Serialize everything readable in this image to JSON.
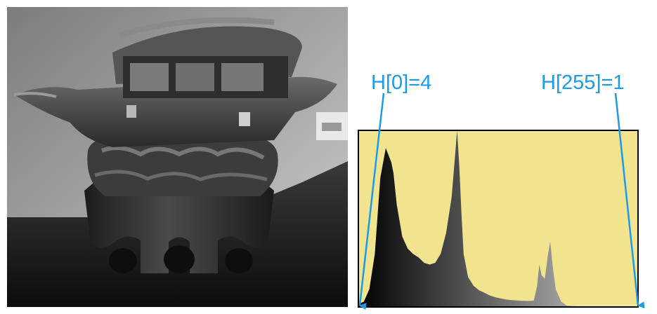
{
  "annotations": {
    "left_label": "H[0]=4",
    "right_label": "H[255]=1",
    "color": "#1a9bea"
  },
  "colors": {
    "plot_background": "#f2e38f",
    "plot_border": "#000000",
    "histogram_dark": "#000000",
    "histogram_light": "#d8d8d8"
  },
  "chart_data": {
    "type": "area",
    "title": "",
    "xlabel": "",
    "ylabel": "",
    "xlim": [
      0,
      255
    ],
    "ylim": [
      0,
      100
    ],
    "grid": false,
    "legend": "none",
    "x": [
      0,
      5,
      10,
      15,
      20,
      25,
      30,
      32,
      35,
      40,
      45,
      50,
      55,
      60,
      65,
      70,
      75,
      80,
      85,
      88,
      90,
      92,
      94,
      96,
      100,
      105,
      110,
      115,
      120,
      125,
      130,
      135,
      140,
      145,
      150,
      155,
      160,
      163,
      165,
      167,
      170,
      173,
      175,
      177,
      180,
      185,
      190,
      195,
      200,
      210,
      220,
      230,
      240,
      250,
      255
    ],
    "values": [
      1.6,
      3,
      10,
      30,
      73,
      90,
      82,
      76,
      58,
      40,
      33,
      30,
      28,
      25,
      24,
      25,
      30,
      42,
      62,
      84,
      100,
      80,
      53,
      30,
      17,
      12,
      9.5,
      8,
      6.5,
      5.5,
      4.8,
      4.2,
      3.9,
      3.7,
      3.5,
      3.4,
      3.6,
      12,
      24,
      18,
      16,
      30,
      37,
      24,
      10,
      3,
      0.8,
      0.5,
      0.4,
      0.3,
      0.3,
      0.2,
      0.2,
      0.2,
      0.4
    ]
  }
}
